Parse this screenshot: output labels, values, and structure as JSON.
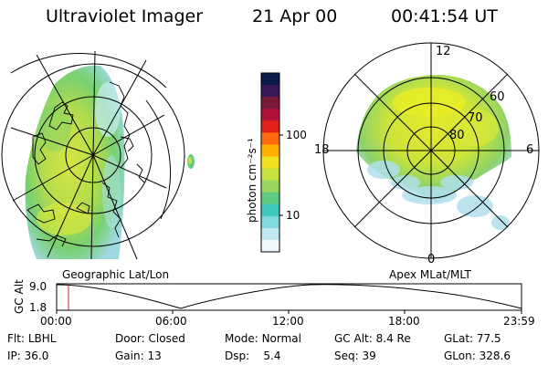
{
  "header": {
    "instrument": "Ultraviolet Imager",
    "date": "21 Apr 00",
    "time": "00:41:54 UT"
  },
  "geo_panel": {
    "caption": "Geographic Lat/Lon"
  },
  "colorbar": {
    "unit_label": "photon cm⁻²s⁻¹",
    "ticks": [
      "100",
      "10"
    ],
    "colors": [
      "#0a1a4a",
      "#3a1a5a",
      "#7a1a3a",
      "#b0103a",
      "#e0201a",
      "#ff6a10",
      "#ffb000",
      "#f0e020",
      "#c8e040",
      "#9ad860",
      "#60cc80",
      "#40c8c0",
      "#80d8e0",
      "#c0e8f0",
      "#f0f8fc"
    ]
  },
  "polar_panel": {
    "caption": "Apex MLat/MLT",
    "mlt_labels": {
      "top": "12",
      "left": "18",
      "right": "6",
      "bottom": "0"
    },
    "lat_labels": [
      "60",
      "70",
      "80"
    ]
  },
  "altitude_plot": {
    "ylabel": "GC Alt",
    "yticks": [
      "9.0",
      "1.8"
    ],
    "xticks": [
      "00:00",
      "06:00",
      "12:00",
      "18:00",
      "23:59"
    ],
    "marker_time": "00:41:54"
  },
  "status": {
    "row1": [
      {
        "label": "Flt:",
        "value": "LBHL"
      },
      {
        "label": "Door:",
        "value": "Closed"
      },
      {
        "label": "Mode:",
        "value": "Normal"
      },
      {
        "label": "GC Alt:",
        "value": "8.4 Re"
      },
      {
        "label": "GLat:",
        "value": "77.5"
      }
    ],
    "row2": [
      {
        "label": "IP:",
        "value": "36.0"
      },
      {
        "label": "Gain:",
        "value": "13"
      },
      {
        "label": "Dsp:",
        "value": "5.4"
      },
      {
        "label": "Seq:",
        "value": "39"
      },
      {
        "label": "GLon:",
        "value": "328.6"
      }
    ]
  }
}
